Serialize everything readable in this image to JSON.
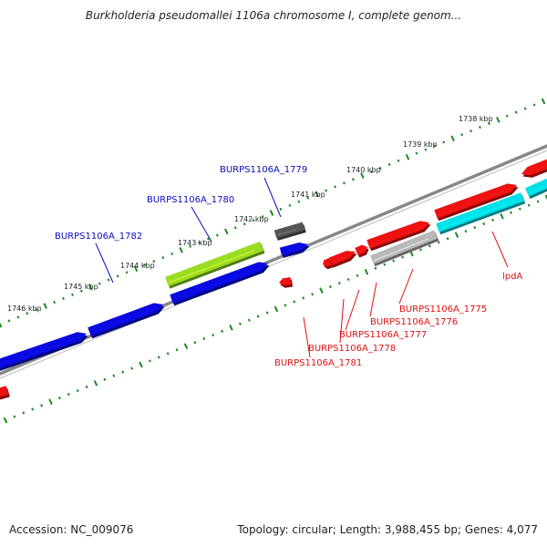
{
  "title": "Burkholderia pseudomallei 1106a chromosome I, complete genom...",
  "footer": {
    "accession": "Accession: NC_009076",
    "summary": "Topology: circular; Length: 3,988,455 bp; Genes: 4,077"
  },
  "colors": {
    "blue_gene": "#0a0ae0",
    "red_gene": "#ee1111",
    "cyan_gene": "#00e0e8",
    "green_gene": "#99dd22",
    "gray_gene": "#b8b8b8",
    "dark_gene": "#555555",
    "backbone": "#888888",
    "dots": "#1a8a1a",
    "blue_label": "#0b0bbf",
    "red_label": "#e01010"
  },
  "tick_labels": [
    {
      "id": "t1738",
      "text": "1738 kbp"
    },
    {
      "id": "t1739",
      "text": "1739 kbp"
    },
    {
      "id": "t1740",
      "text": "1740 kbp"
    },
    {
      "id": "t1741",
      "text": "1741 kbp"
    },
    {
      "id": "t1742",
      "text": "1742 kbp"
    },
    {
      "id": "t1743",
      "text": "1743 kbp"
    },
    {
      "id": "t1744",
      "text": "1744 kbp"
    },
    {
      "id": "t1745",
      "text": "1745 kbp"
    },
    {
      "id": "t1746",
      "text": "1746 kbp"
    }
  ],
  "gene_labels": [
    {
      "id": "g1779",
      "text": "BURPS1106A_1779"
    },
    {
      "id": "g1780",
      "text": "BURPS1106A_1780"
    },
    {
      "id": "g1782",
      "text": "BURPS1106A_1782"
    },
    {
      "id": "g1775",
      "text": "BURPS1106A_1775"
    },
    {
      "id": "g1776",
      "text": "BURPS1106A_1776"
    },
    {
      "id": "g1777",
      "text": "BURPS1106A_1777"
    },
    {
      "id": "g1778",
      "text": "BURPS1106A_1778"
    },
    {
      "id": "g1781",
      "text": "BURPS1106A_1781"
    },
    {
      "id": "lpdA",
      "text": "lpdA"
    }
  ]
}
